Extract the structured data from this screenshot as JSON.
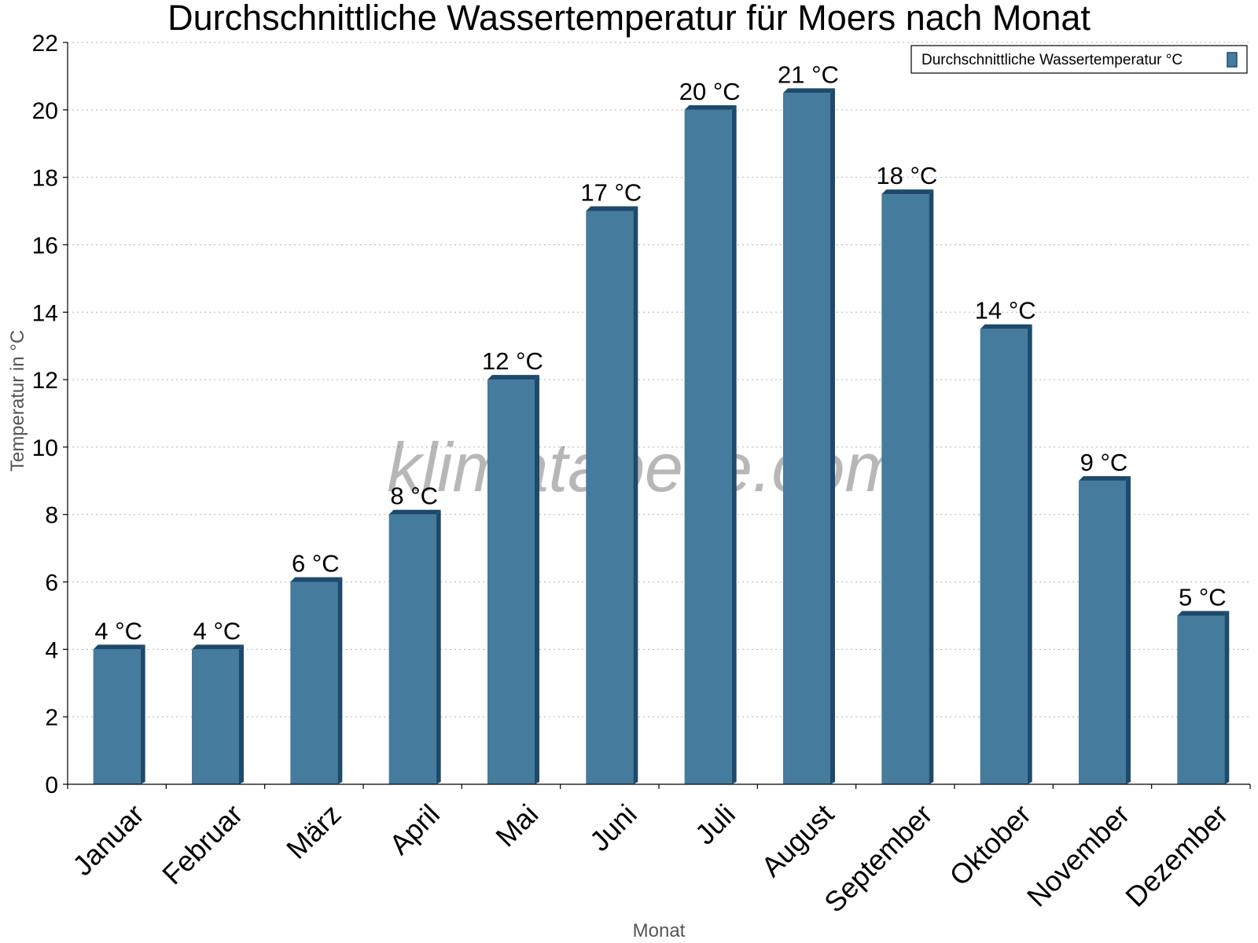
{
  "chart_data": {
    "type": "bar",
    "title": "Durchschnittliche Wassertemperatur für Moers nach Monat",
    "xlabel": "Monat",
    "ylabel": "Temperatur in °C",
    "categories": [
      "Januar",
      "Februar",
      "März",
      "April",
      "Mai",
      "Juni",
      "Juli",
      "August",
      "September",
      "Oktober",
      "November",
      "Dezember"
    ],
    "series": [
      {
        "name": "Durchschnittliche Wassertemperatur °C",
        "values": [
          4,
          4,
          6,
          8,
          12,
          17,
          20,
          20.5,
          17.5,
          13.5,
          9,
          5
        ],
        "labels": [
          "4 °C",
          "4 °C",
          "6 °C",
          "8 °C",
          "12 °C",
          "17 °C",
          "20 °C",
          "21 °C",
          "18 °C",
          "14 °C",
          "9 °C",
          "5 °C"
        ],
        "color": "#457b9d"
      }
    ],
    "ylim": [
      0,
      22
    ],
    "yticks": [
      0,
      2,
      4,
      6,
      8,
      10,
      12,
      14,
      16,
      18,
      20,
      22
    ],
    "grid": true,
    "legend": "top-right",
    "watermark": "klimatabelle.com"
  }
}
